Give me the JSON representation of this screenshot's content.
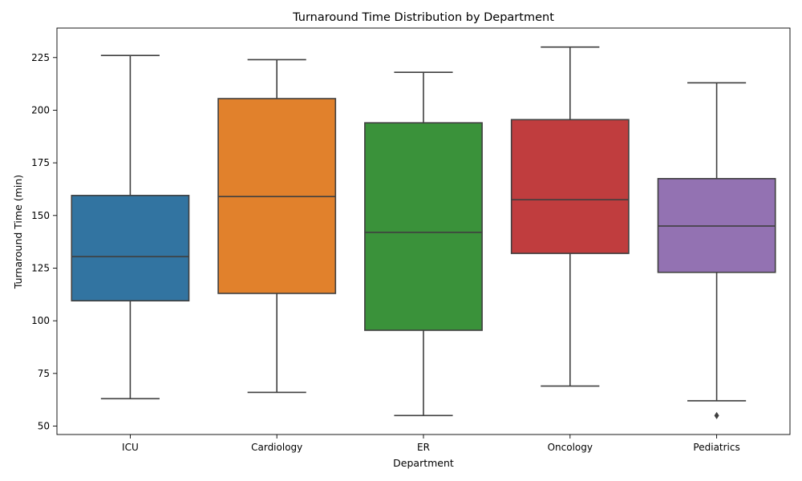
{
  "chart_data": {
    "type": "box",
    "title": "Turnaround Time Distribution by Department",
    "xlabel": "Department",
    "ylabel": "Turnaround Time (min)",
    "ylim": [
      46,
      239
    ],
    "yticks": [
      50,
      75,
      100,
      125,
      150,
      175,
      200,
      225
    ],
    "grid": false,
    "categories": [
      "ICU",
      "Cardiology",
      "ER",
      "Oncology",
      "Pediatrics"
    ],
    "series": [
      {
        "whisker_low": 63,
        "q1": 109.5,
        "median": 130.5,
        "q3": 159.5,
        "whisker_high": 226,
        "outliers": [],
        "color": "#3274a1"
      },
      {
        "whisker_low": 66,
        "q1": 113,
        "median": 159,
        "q3": 205.5,
        "whisker_high": 224,
        "outliers": [],
        "color": "#e1812c"
      },
      {
        "whisker_low": 55,
        "q1": 95.5,
        "median": 142,
        "q3": 194,
        "whisker_high": 218,
        "outliers": [],
        "color": "#3a923a"
      },
      {
        "whisker_low": 69,
        "q1": 132,
        "median": 157.5,
        "q3": 195.5,
        "whisker_high": 230,
        "outliers": [],
        "color": "#c03d3e"
      },
      {
        "whisker_low": 62,
        "q1": 123,
        "median": 145,
        "q3": 167.5,
        "whisker_high": 213,
        "outliers": [
          55
        ],
        "color": "#9372b2"
      }
    ]
  }
}
